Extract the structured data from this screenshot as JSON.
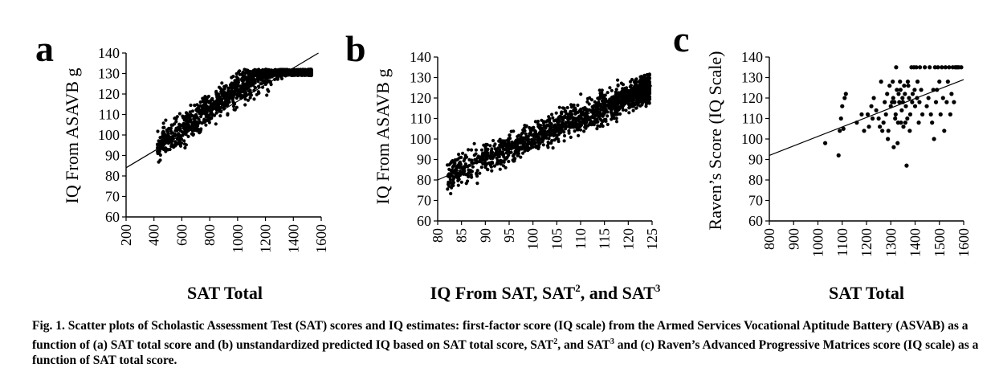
{
  "caption": {
    "fig_label": "Fig. 1.",
    "text_1": "Scatter plots of Scholastic Assessment Test (SAT) scores and IQ estimates: first-factor score (IQ scale) from the Armed Services Vocational Aptitude Battery (ASVAB) as a function of (a) SAT total score and (b) unstandardized predicted IQ based on SAT total score, SAT",
    "sup_1": "2",
    "text_2": ", and SAT",
    "sup_2": "3",
    "text_3": " and (c) Raven’s Advanced Progressive Matrices score (IQ scale) as a function of SAT total score."
  },
  "chart_data": [
    {
      "panel": "a",
      "type": "scatter",
      "xlabel": "SAT Total",
      "ylabel": "IQ From ASAVB g",
      "xlim": [
        200,
        1600
      ],
      "ylim": [
        60,
        140
      ],
      "xticks": [
        200,
        400,
        600,
        800,
        1000,
        1200,
        1400,
        1600
      ],
      "yticks": [
        60,
        70,
        80,
        90,
        100,
        110,
        120,
        130,
        140
      ],
      "grid": false,
      "fit_line": {
        "x": [
          200,
          1580
        ],
        "y": [
          84,
          140
        ]
      },
      "cloud": {
        "x_range": [
          420,
          1530
        ],
        "approx_points": 1500
      }
    },
    {
      "panel": "b",
      "type": "scatter",
      "xlabel": "IQ From SAT, SAT",
      "xlabel_sup_1": "2",
      "xlabel_mid": ", and SAT",
      "xlabel_sup_2": "3",
      "ylabel": "IQ From ASAVB g",
      "xlim": [
        80,
        125
      ],
      "ylim": [
        60,
        140
      ],
      "xticks": [
        80,
        85,
        90,
        95,
        100,
        105,
        110,
        115,
        120,
        125
      ],
      "yticks": [
        60,
        70,
        80,
        90,
        100,
        110,
        120,
        130,
        140
      ],
      "grid": false,
      "fit_line": {
        "x": [
          80,
          125
        ],
        "y": [
          80,
          126
        ]
      },
      "cloud": {
        "x_range": [
          82,
          124.5
        ],
        "approx_points": 1500
      }
    },
    {
      "panel": "c",
      "type": "scatter",
      "xlabel": "SAT Total",
      "ylabel": "Raven’s Score (IQ Scale)",
      "xlim": [
        800,
        1600
      ],
      "ylim": [
        60,
        140
      ],
      "xticks": [
        800,
        900,
        1000,
        1100,
        1200,
        1300,
        1400,
        1500,
        1600
      ],
      "yticks": [
        60,
        70,
        80,
        90,
        100,
        110,
        120,
        130,
        140
      ],
      "grid": false,
      "fit_line": {
        "x": [
          800,
          1600
        ],
        "y": [
          92,
          129
        ]
      },
      "points": [
        [
          1030,
          98
        ],
        [
          1085,
          92
        ],
        [
          1090,
          104
        ],
        [
          1095,
          110
        ],
        [
          1100,
          116
        ],
        [
          1105,
          105
        ],
        [
          1110,
          120
        ],
        [
          1115,
          122
        ],
        [
          1160,
          108
        ],
        [
          1180,
          112
        ],
        [
          1190,
          104
        ],
        [
          1205,
          112
        ],
        [
          1210,
          106
        ],
        [
          1220,
          116
        ],
        [
          1225,
          110
        ],
        [
          1230,
          120
        ],
        [
          1240,
          114
        ],
        [
          1250,
          110
        ],
        [
          1255,
          106
        ],
        [
          1260,
          128
        ],
        [
          1265,
          104
        ],
        [
          1270,
          108
        ],
        [
          1275,
          118
        ],
        [
          1280,
          112
        ],
        [
          1285,
          122
        ],
        [
          1288,
          100
        ],
        [
          1290,
          104
        ],
        [
          1295,
          126
        ],
        [
          1300,
          116
        ],
        [
          1305,
          118
        ],
        [
          1308,
          128
        ],
        [
          1310,
          120
        ],
        [
          1312,
          96
        ],
        [
          1315,
          118
        ],
        [
          1318,
          110
        ],
        [
          1320,
          112
        ],
        [
          1322,
          135
        ],
        [
          1325,
          124
        ],
        [
          1328,
          98
        ],
        [
          1330,
          108
        ],
        [
          1332,
          122
        ],
        [
          1335,
          118
        ],
        [
          1338,
          128
        ],
        [
          1340,
          124
        ],
        [
          1342,
          108
        ],
        [
          1345,
          114
        ],
        [
          1348,
          120
        ],
        [
          1350,
          118
        ],
        [
          1352,
          106
        ],
        [
          1355,
          126
        ],
        [
          1358,
          122
        ],
        [
          1360,
          108
        ],
        [
          1362,
          116
        ],
        [
          1365,
          87
        ],
        [
          1368,
          110
        ],
        [
          1370,
          128
        ],
        [
          1372,
          126
        ],
        [
          1375,
          120
        ],
        [
          1378,
          104
        ],
        [
          1380,
          112
        ],
        [
          1385,
          135
        ],
        [
          1388,
          118
        ],
        [
          1390,
          122
        ],
        [
          1395,
          135
        ],
        [
          1398,
          124
        ],
        [
          1400,
          116
        ],
        [
          1405,
          135
        ],
        [
          1408,
          120
        ],
        [
          1410,
          128
        ],
        [
          1415,
          108
        ],
        [
          1418,
          118
        ],
        [
          1420,
          135
        ],
        [
          1425,
          124
        ],
        [
          1430,
          112
        ],
        [
          1440,
          135
        ],
        [
          1448,
          116
        ],
        [
          1455,
          120
        ],
        [
          1460,
          135
        ],
        [
          1465,
          112
        ],
        [
          1470,
          108
        ],
        [
          1475,
          124
        ],
        [
          1478,
          100
        ],
        [
          1482,
          135
        ],
        [
          1486,
          118
        ],
        [
          1490,
          124
        ],
        [
          1494,
          135
        ],
        [
          1500,
          128
        ],
        [
          1505,
          112
        ],
        [
          1510,
          135
        ],
        [
          1515,
          120
        ],
        [
          1520,
          104
        ],
        [
          1525,
          135
        ],
        [
          1530,
          118
        ],
        [
          1535,
          128
        ],
        [
          1540,
          135
        ],
        [
          1545,
          112
        ],
        [
          1550,
          122
        ],
        [
          1555,
          135
        ],
        [
          1560,
          118
        ],
        [
          1565,
          135
        ],
        [
          1570,
          135
        ],
        [
          1575,
          135
        ],
        [
          1580,
          135
        ],
        [
          1590,
          135
        ]
      ]
    }
  ],
  "panels": {
    "a": {
      "letter": "a"
    },
    "b": {
      "letter": "b"
    },
    "c": {
      "letter": "c"
    }
  }
}
